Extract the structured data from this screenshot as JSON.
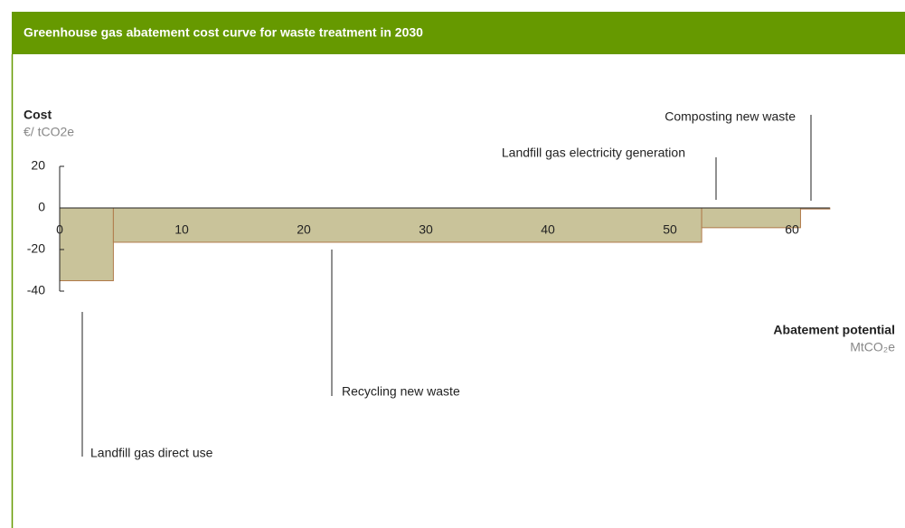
{
  "chart_data": {
    "type": "cost-curve",
    "title": "Greenhouse gas abatement cost curve for waste treatment in 2030",
    "y_label": "Cost",
    "y_unit": "€/ tCO2e",
    "x_label": "Abatement potential",
    "x_unit": "MtCO₂e",
    "categories": [
      "Landfill gas direct use",
      "Recycling new waste",
      "Landfill gas electricity generation",
      "Composting new waste"
    ],
    "widths": [
      4.4,
      48.2,
      8.1,
      2.4
    ],
    "values": [
      -35,
      -16.5,
      -9.5,
      -0.5
    ],
    "color": "#c9c39a",
    "edge_color": "#b07a4a",
    "xlim": [
      0,
      63.1
    ],
    "xticks": [
      0,
      10,
      20,
      30,
      40,
      50,
      60
    ],
    "ylim": [
      -40,
      20
    ],
    "yticks": [
      20,
      0,
      -20,
      -40
    ]
  }
}
